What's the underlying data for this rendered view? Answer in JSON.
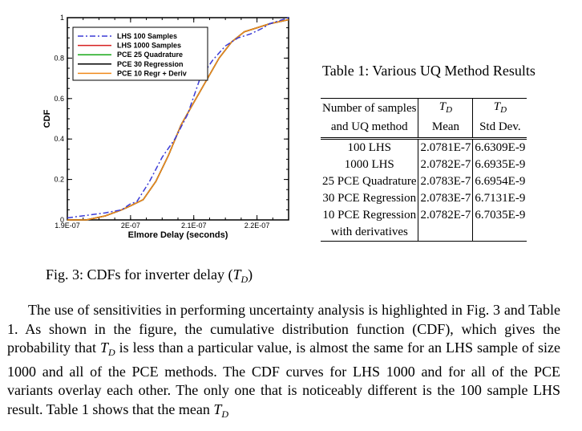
{
  "figure": {
    "caption_prefix": "Fig. 3: CDFs for inverter delay (",
    "caption_symbol": "T",
    "caption_subscript": "D",
    "caption_suffix": ")"
  },
  "chart_data": {
    "type": "line",
    "xlabel": "Elmore Delay (seconds)",
    "ylabel": "CDF",
    "xlim": [
      1.9e-07,
      2.25e-07
    ],
    "ylim": [
      0,
      1
    ],
    "x_ticks": [
      {
        "value": 1.9e-07,
        "label": "1.9E-07"
      },
      {
        "value": 2e-07,
        "label": "2E-07"
      },
      {
        "value": 2.1e-07,
        "label": "2.1E-07"
      },
      {
        "value": 2.2e-07,
        "label": "2.2E-07"
      }
    ],
    "y_ticks": [
      {
        "value": 0,
        "label": "0"
      },
      {
        "value": 0.2,
        "label": "0.2"
      },
      {
        "value": 0.4,
        "label": "0.4"
      },
      {
        "value": 0.6,
        "label": "0.6"
      },
      {
        "value": 0.8,
        "label": "0.8"
      },
      {
        "value": 1,
        "label": "1"
      }
    ],
    "legend_position": "top-left",
    "series": [
      {
        "name": "LHS 100 Samples",
        "color": "#3b3bd6",
        "dash": "dashdot",
        "x": [
          1.9e-07,
          1.96e-07,
          1.986e-07,
          2e-07,
          2.01e-07,
          2.03e-07,
          2.05e-07,
          2.07e-07,
          2.09e-07,
          2.11e-07,
          2.13e-07,
          2.15e-07,
          2.17e-07,
          2.19e-07,
          2.21e-07,
          2.22e-07,
          2.25e-07
        ],
        "y": [
          0.01,
          0.035,
          0.05,
          0.08,
          0.09,
          0.19,
          0.31,
          0.4,
          0.52,
          0.7,
          0.79,
          0.86,
          0.9,
          0.92,
          0.95,
          0.97,
          1.0
        ]
      },
      {
        "name": "LHS 1000 Samples",
        "color": "#d62020",
        "dash": "solid",
        "x": [
          1.9e-07,
          1.93e-07,
          1.96e-07,
          1.986e-07,
          2e-07,
          2.02e-07,
          2.04e-07,
          2.06e-07,
          2.08e-07,
          2.1e-07,
          2.12e-07,
          2.14e-07,
          2.16e-07,
          2.18e-07,
          2.2e-07,
          2.22e-07,
          2.25e-07
        ],
        "y": [
          0.0,
          0.0,
          0.02,
          0.05,
          0.07,
          0.1,
          0.19,
          0.32,
          0.47,
          0.58,
          0.69,
          0.8,
          0.88,
          0.93,
          0.95,
          0.97,
          0.99
        ]
      },
      {
        "name": "PCE 25 Quadrature",
        "color": "#18a818",
        "dash": "solid",
        "x": [
          1.9e-07,
          1.93e-07,
          1.96e-07,
          1.986e-07,
          2e-07,
          2.02e-07,
          2.04e-07,
          2.06e-07,
          2.08e-07,
          2.1e-07,
          2.12e-07,
          2.14e-07,
          2.16e-07,
          2.18e-07,
          2.2e-07,
          2.22e-07,
          2.25e-07
        ],
        "y": [
          0.0,
          0.0,
          0.02,
          0.05,
          0.07,
          0.1,
          0.19,
          0.32,
          0.47,
          0.58,
          0.69,
          0.8,
          0.88,
          0.93,
          0.95,
          0.97,
          0.99
        ]
      },
      {
        "name": "PCE 30 Regression",
        "color": "#000000",
        "dash": "solid",
        "x": [
          1.9e-07,
          1.93e-07,
          1.96e-07,
          1.986e-07,
          2e-07,
          2.02e-07,
          2.04e-07,
          2.06e-07,
          2.08e-07,
          2.1e-07,
          2.12e-07,
          2.14e-07,
          2.16e-07,
          2.18e-07,
          2.2e-07,
          2.22e-07,
          2.25e-07
        ],
        "y": [
          0.0,
          0.0,
          0.02,
          0.05,
          0.07,
          0.1,
          0.19,
          0.32,
          0.47,
          0.58,
          0.69,
          0.8,
          0.88,
          0.93,
          0.95,
          0.97,
          0.99
        ]
      },
      {
        "name": "PCE 10 Regr + Deriv",
        "color": "#f08a1c",
        "dash": "solid",
        "x": [
          1.9e-07,
          1.93e-07,
          1.96e-07,
          1.986e-07,
          2e-07,
          2.02e-07,
          2.04e-07,
          2.06e-07,
          2.08e-07,
          2.1e-07,
          2.12e-07,
          2.14e-07,
          2.16e-07,
          2.18e-07,
          2.2e-07,
          2.22e-07,
          2.25e-07
        ],
        "y": [
          0.0,
          0.0,
          0.02,
          0.05,
          0.07,
          0.1,
          0.19,
          0.32,
          0.47,
          0.58,
          0.69,
          0.8,
          0.88,
          0.93,
          0.95,
          0.97,
          0.99
        ]
      }
    ]
  },
  "table": {
    "caption": "Table 1: Various UQ Method Results",
    "header": {
      "col1_line1": "Number of samples",
      "col1_line2": "and UQ method",
      "col2_symbol": "T",
      "col2_subscript": "D",
      "col2_line2": "Mean",
      "col3_symbol": "T",
      "col3_subscript": "D",
      "col3_line2": "Std Dev."
    },
    "rows": [
      {
        "method": "100 LHS",
        "mean": "2.0781E-7",
        "std": "6.6309E-9"
      },
      {
        "method": "1000 LHS",
        "mean": "2.0782E-7",
        "std": "6.6935E-9"
      },
      {
        "method": "25 PCE Quadrature",
        "mean": "2.0783E-7",
        "std": "6.6954E-9"
      },
      {
        "method": "30 PCE Regression",
        "mean": "2.0783E-7",
        "std": "6.7131E-9"
      },
      {
        "method": "10 PCE Regression",
        "mean": "2.0782E-7",
        "std": "6.7035E-9"
      },
      {
        "method": "with derivatives",
        "mean": "",
        "std": ""
      }
    ]
  },
  "body": {
    "p1": "The use of sensitivities in performing uncertainty analysis is highlighted in Fig. 3 and Table 1. As shown in the figure, the cumulative distribution function (CDF), which gives the probability that ",
    "sym1": "T",
    "sub1": "D",
    "p2": " is less than a particular value, is almost the same for an LHS sample of size 1000 and all of the PCE methods. The CDF curves for LHS 1000 and for all of the PCE variants overlay each other. The only one that is noticeably different is the 100 sample LHS result. Table 1 shows that the mean ",
    "sym2": "T",
    "sub2": "D"
  }
}
